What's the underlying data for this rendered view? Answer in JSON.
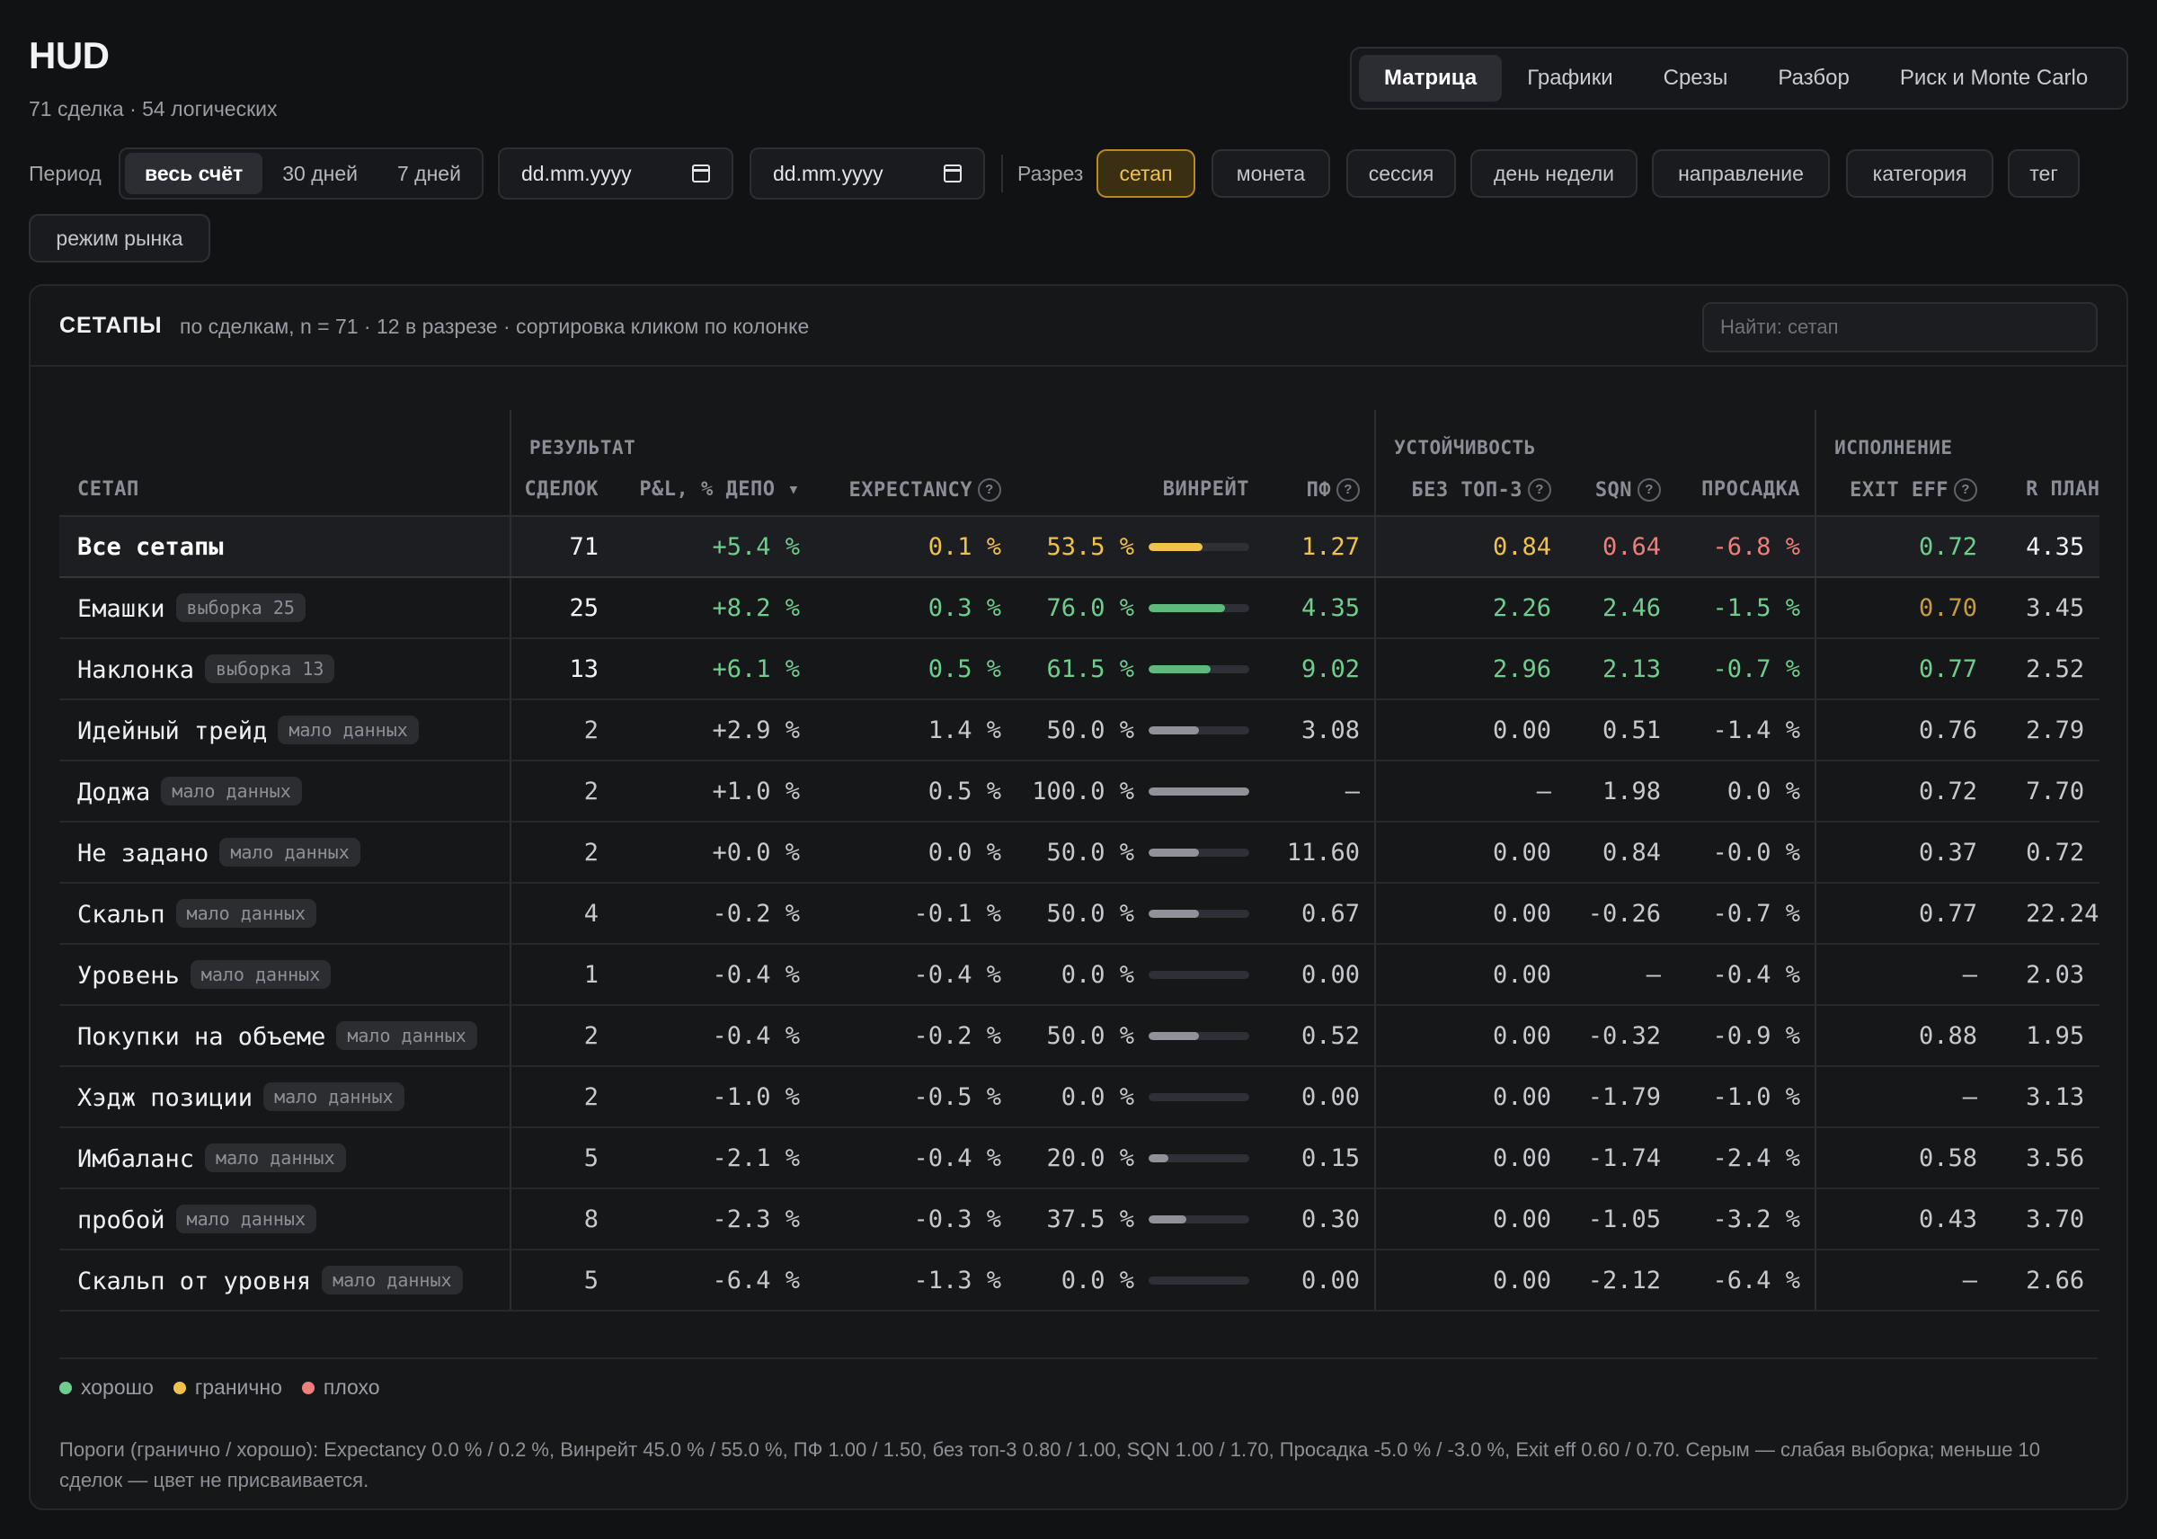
{
  "app": {
    "title": "HUD",
    "subtitle": "71 сделка · 54 логических"
  },
  "nav": {
    "tabs": [
      "Матрица",
      "Графики",
      "Срезы",
      "Разбор",
      "Риск и Monte Carlo"
    ],
    "active": 0
  },
  "filters": {
    "period_label": "Период",
    "period_options": [
      "весь счёт",
      "30 дней",
      "7 дней"
    ],
    "date_from": "dd.mm.yyyy",
    "date_to": "dd.mm.yyyy",
    "slice_label": "Разрез",
    "slice_options": [
      "сетап",
      "монета",
      "сессия",
      "день недели",
      "направление",
      "категория",
      "тег",
      "режим рынка"
    ]
  },
  "panel": {
    "title": "СЕТАПЫ",
    "subtitle": "по сделкам, n = 71 · 12 в разрезе · сортировка кликом по колонке",
    "search_placeholder": "Найти: сетап"
  },
  "table": {
    "groups": [
      "РЕЗУЛЬТАТ",
      "УСТОЙЧИВОСТЬ",
      "ИСПОЛНЕНИЕ"
    ],
    "columns": {
      "setup": "СЕТАП",
      "trades": "СДЕЛОК",
      "pnl": "P&L, % ДЕПО ▾",
      "expectancy": "EXPECTANCY",
      "winrate": "ВИНРЕЙТ",
      "pf": "ПФ",
      "no_top3": "БЕЗ ТОП-3",
      "sqn": "SQN",
      "drawdown": "ПРОСАДКА",
      "exit_eff": "EXIT EFF",
      "r_plan": "R ПЛАН"
    },
    "help_icon": "?",
    "rows": [
      {
        "name": "Все сетапы",
        "badge": "",
        "trades": "71",
        "pnl": "+5.4 %",
        "exp": "0.1 %",
        "wr": "53.5 %",
        "wr_frac": 0.535,
        "pf": "1.27",
        "notop3": "0.84",
        "sqn": "0.64",
        "dd": "-6.8 %",
        "exit": "0.72",
        "r": "4.35",
        "arrow": "→",
        "status": {
          "trades": "white",
          "pnl": "good",
          "exp": "warn",
          "wr": "warn",
          "pf": "warn",
          "notop3": "warn",
          "sqn": "bad",
          "dd": "bad",
          "exit": "good",
          "r": "white"
        }
      },
      {
        "name": "Емашки",
        "badge": "выборка 25",
        "trades": "25",
        "pnl": "+8.2 %",
        "exp": "0.3 %",
        "wr": "76.0 %",
        "wr_frac": 0.76,
        "pf": "4.35",
        "notop3": "2.26",
        "sqn": "2.46",
        "dd": "-1.5 %",
        "exit": "0.70",
        "r": "3.45",
        "arrow": "→",
        "status": {
          "trades": "white",
          "pnl": "good",
          "exp": "good",
          "wr": "good",
          "pf": "good",
          "notop3": "good",
          "sqn": "good",
          "dd": "good",
          "exit": "exitwarn",
          "r": "gray"
        }
      },
      {
        "name": "Наклонка",
        "badge": "выборка 13",
        "trades": "13",
        "pnl": "+6.1 %",
        "exp": "0.5 %",
        "wr": "61.5 %",
        "wr_frac": 0.615,
        "pf": "9.02",
        "notop3": "2.96",
        "sqn": "2.13",
        "dd": "-0.7 %",
        "exit": "0.77",
        "r": "2.52",
        "arrow": "→",
        "status": {
          "trades": "white",
          "pnl": "good",
          "exp": "good",
          "wr": "good",
          "pf": "good",
          "notop3": "good",
          "sqn": "good",
          "dd": "good",
          "exit": "good",
          "r": "gray"
        }
      },
      {
        "name": "Идейный трейд",
        "badge": "мало данных",
        "trades": "2",
        "pnl": "+2.9 %",
        "exp": "1.4 %",
        "wr": "50.0 %",
        "wr_frac": 0.5,
        "pf": "3.08",
        "notop3": "0.00",
        "sqn": "0.51",
        "dd": "-1.4 %",
        "exit": "0.76",
        "r": "2.79",
        "arrow": "→"
      },
      {
        "name": "Доджа",
        "badge": "мало данных",
        "trades": "2",
        "pnl": "+1.0 %",
        "exp": "0.5 %",
        "wr": "100.0 %",
        "wr_frac": 1.0,
        "pf": "—",
        "notop3": "—",
        "sqn": "1.98",
        "dd": "0.0 %",
        "exit": "0.72",
        "r": "7.70",
        "arrow": "→"
      },
      {
        "name": "Не задано",
        "badge": "мало данных",
        "trades": "2",
        "pnl": "+0.0 %",
        "exp": "0.0 %",
        "wr": "50.0 %",
        "wr_frac": 0.5,
        "pf": "11.60",
        "notop3": "0.00",
        "sqn": "0.84",
        "dd": "-0.0 %",
        "exit": "0.37",
        "r": "0.72",
        "arrow": "→"
      },
      {
        "name": "Скальп",
        "badge": "мало данных",
        "trades": "4",
        "pnl": "-0.2 %",
        "exp": "-0.1 %",
        "wr": "50.0 %",
        "wr_frac": 0.5,
        "pf": "0.67",
        "notop3": "0.00",
        "sqn": "-0.26",
        "dd": "-0.7 %",
        "exit": "0.77",
        "r": "22.24",
        "arrow": "→"
      },
      {
        "name": "Уровень",
        "badge": "мало данных",
        "trades": "1",
        "pnl": "-0.4 %",
        "exp": "-0.4 %",
        "wr": "0.0 %",
        "wr_frac": 0.0,
        "pf": "0.00",
        "notop3": "0.00",
        "sqn": "—",
        "dd": "-0.4 %",
        "exit": "—",
        "r": "2.03",
        "arrow": "→"
      },
      {
        "name": "Покупки на объеме",
        "badge": "мало данных",
        "trades": "2",
        "pnl": "-0.4 %",
        "exp": "-0.2 %",
        "wr": "50.0 %",
        "wr_frac": 0.5,
        "pf": "0.52",
        "notop3": "0.00",
        "sqn": "-0.32",
        "dd": "-0.9 %",
        "exit": "0.88",
        "r": "1.95",
        "arrow": "→"
      },
      {
        "name": "Хэдж позиции",
        "badge": "мало данных",
        "trades": "2",
        "pnl": "-1.0 %",
        "exp": "-0.5 %",
        "wr": "0.0 %",
        "wr_frac": 0.0,
        "pf": "0.00",
        "notop3": "0.00",
        "sqn": "-1.79",
        "dd": "-1.0 %",
        "exit": "—",
        "r": "3.13",
        "arrow": "→"
      },
      {
        "name": "Имбаланс",
        "badge": "мало данных",
        "trades": "5",
        "pnl": "-2.1 %",
        "exp": "-0.4 %",
        "wr": "20.0 %",
        "wr_frac": 0.2,
        "pf": "0.15",
        "notop3": "0.00",
        "sqn": "-1.74",
        "dd": "-2.4 %",
        "exit": "0.58",
        "r": "3.56",
        "arrow": "→"
      },
      {
        "name": "пробой",
        "badge": "мало данных",
        "trades": "8",
        "pnl": "-2.3 %",
        "exp": "-0.3 %",
        "wr": "37.5 %",
        "wr_frac": 0.375,
        "pf": "0.30",
        "notop3": "0.00",
        "sqn": "-1.05",
        "dd": "-3.2 %",
        "exit": "0.43",
        "r": "3.70",
        "arrow": "→"
      },
      {
        "name": "Скальп от уровня",
        "badge": "мало данных",
        "trades": "5",
        "pnl": "-6.4 %",
        "exp": "-1.3 %",
        "wr": "0.0 %",
        "wr_frac": 0.0,
        "pf": "0.00",
        "notop3": "0.00",
        "sqn": "-2.12",
        "dd": "-6.4 %",
        "exit": "—",
        "r": "2.66",
        "arrow": "→"
      }
    ]
  },
  "legend": [
    {
      "label": "хорошо",
      "color": "#6fce8e"
    },
    {
      "label": "гранично",
      "color": "#f0c14b"
    },
    {
      "label": "плохо",
      "color": "#f07f7a"
    }
  ],
  "footnote": "Пороги (гранично / хорошо): Expectancy 0.0 % / 0.2 %, Винрейт 45.0 % / 55.0 %, ПФ 1.00 / 1.50, без топ-3 0.80 / 1.00, SQN 1.00 / 1.70, Просадка -5.0 % / -3.0 %, Exit eff 0.60 / 0.70. Серым — слабая выборка; меньше 10 сделок — цвет не присваивается.",
  "colors": {
    "good": "#6fce8e",
    "warn": "#f0c14b",
    "bad": "#f07f7a",
    "accent": "#f2c14e",
    "bar_good": "#5fb87c",
    "bar_warn": "#f0c14b",
    "bar_gray": "#8f9297"
  }
}
